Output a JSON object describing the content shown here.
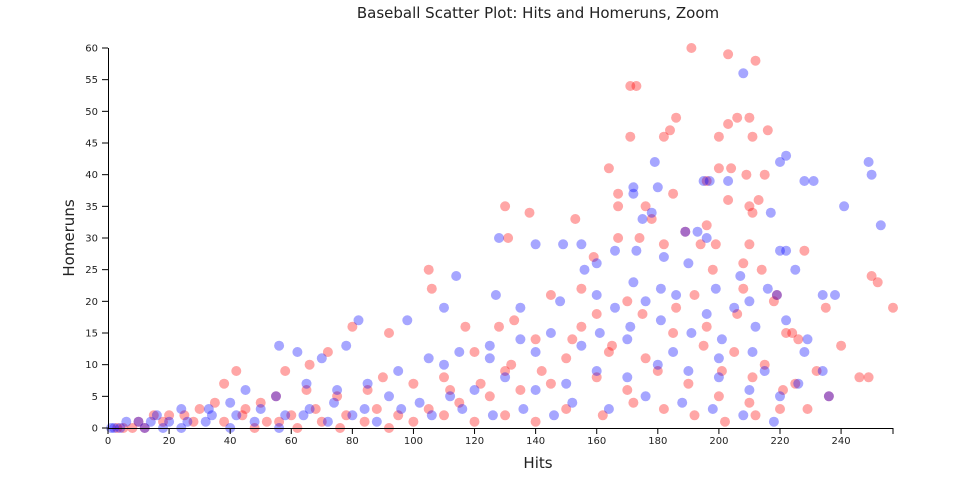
{
  "chart_data": {
    "type": "scatter",
    "title": "Baseball Scatter Plot: Hits and Homeruns, Zoom",
    "xlabel": "Hits",
    "ylabel": "Homeruns",
    "xlim": [
      0,
      257
    ],
    "ylim": [
      0,
      60
    ],
    "x_ticks": [
      0,
      20,
      40,
      60,
      80,
      100,
      120,
      140,
      160,
      180,
      200,
      220,
      240
    ],
    "y_ticks": [
      0,
      5,
      10,
      15,
      20,
      25,
      30,
      35,
      40,
      45,
      50,
      55,
      60
    ],
    "grid": false,
    "legend": "none",
    "series": [
      {
        "color": "#ff0000",
        "opacity": 0.35,
        "points": [
          [
            191,
            60
          ],
          [
            203,
            59
          ],
          [
            212,
            58
          ],
          [
            171,
            54
          ],
          [
            173,
            54
          ],
          [
            206,
            49
          ],
          [
            210,
            49
          ],
          [
            186,
            49
          ],
          [
            203,
            48
          ],
          [
            200,
            46
          ],
          [
            182,
            46
          ],
          [
            211,
            46
          ],
          [
            184,
            47
          ],
          [
            216,
            47
          ],
          [
            171,
            46
          ],
          [
            200,
            41
          ],
          [
            204,
            41
          ],
          [
            164,
            41
          ],
          [
            209,
            40
          ],
          [
            196,
            39
          ],
          [
            215,
            40
          ],
          [
            203,
            36
          ],
          [
            176,
            35
          ],
          [
            210,
            35
          ],
          [
            213,
            36
          ],
          [
            130,
            35
          ],
          [
            138,
            34
          ],
          [
            167,
            35
          ],
          [
            185,
            37
          ],
          [
            211,
            34
          ],
          [
            196,
            32
          ],
          [
            167,
            37
          ],
          [
            153,
            33
          ],
          [
            178,
            33
          ],
          [
            189,
            31
          ],
          [
            199,
            29
          ],
          [
            194,
            29
          ],
          [
            208,
            26
          ],
          [
            210,
            29
          ],
          [
            131,
            30
          ],
          [
            167,
            30
          ],
          [
            174,
            30
          ],
          [
            182,
            29
          ],
          [
            214,
            25
          ],
          [
            228,
            28
          ],
          [
            105,
            25
          ],
          [
            106,
            22
          ],
          [
            159,
            27
          ],
          [
            155,
            22
          ],
          [
            219,
            21
          ],
          [
            250,
            24
          ],
          [
            252,
            23
          ],
          [
            257,
            19
          ],
          [
            235,
            19
          ],
          [
            240,
            13
          ],
          [
            246,
            8
          ],
          [
            249,
            8
          ],
          [
            222,
            15
          ],
          [
            226,
            14
          ],
          [
            224,
            15
          ],
          [
            218,
            20
          ],
          [
            192,
            21
          ],
          [
            170,
            20
          ],
          [
            160,
            18
          ],
          [
            145,
            21
          ],
          [
            133,
            17
          ],
          [
            128,
            16
          ],
          [
            117,
            16
          ],
          [
            92,
            15
          ],
          [
            80,
            16
          ],
          [
            72,
            12
          ],
          [
            66,
            10
          ],
          [
            58,
            9
          ],
          [
            42,
            9
          ],
          [
            38,
            7
          ],
          [
            120,
            12
          ],
          [
            130,
            9
          ],
          [
            140,
            14
          ],
          [
            150,
            11
          ],
          [
            155,
            16
          ],
          [
            165,
            13
          ],
          [
            175,
            18
          ],
          [
            185,
            15
          ],
          [
            195,
            13
          ],
          [
            205,
            12
          ],
          [
            215,
            10
          ],
          [
            225,
            7
          ],
          [
            232,
            9
          ],
          [
            236,
            5
          ],
          [
            229,
            3
          ],
          [
            110,
            8
          ],
          [
            100,
            7
          ],
          [
            90,
            8
          ],
          [
            85,
            6
          ],
          [
            75,
            5
          ],
          [
            65,
            6
          ],
          [
            55,
            5
          ],
          [
            50,
            4
          ],
          [
            45,
            3
          ],
          [
            35,
            4
          ],
          [
            30,
            3
          ],
          [
            25,
            2
          ],
          [
            20,
            2
          ],
          [
            15,
            2
          ],
          [
            10,
            1
          ],
          [
            160,
            8
          ],
          [
            170,
            6
          ],
          [
            180,
            9
          ],
          [
            190,
            7
          ],
          [
            200,
            5
          ],
          [
            210,
            4
          ],
          [
            220,
            3
          ],
          [
            145,
            7
          ],
          [
            135,
            6
          ],
          [
            125,
            5
          ],
          [
            115,
            4
          ],
          [
            105,
            3
          ],
          [
            95,
            2
          ],
          [
            88,
            3
          ],
          [
            78,
            2
          ],
          [
            68,
            3
          ],
          [
            60,
            2
          ],
          [
            52,
            1
          ],
          [
            44,
            2
          ],
          [
            38,
            1
          ],
          [
            28,
            1
          ],
          [
            18,
            1
          ],
          [
            12,
            0
          ],
          [
            8,
            0
          ],
          [
            5,
            0
          ],
          [
            3,
            0
          ],
          [
            150,
            3
          ],
          [
            162,
            2
          ],
          [
            172,
            4
          ],
          [
            182,
            3
          ],
          [
            192,
            2
          ],
          [
            202,
            1
          ],
          [
            212,
            2
          ],
          [
            140,
            1
          ],
          [
            130,
            2
          ],
          [
            120,
            1
          ],
          [
            110,
            2
          ],
          [
            100,
            1
          ],
          [
            92,
            0
          ],
          [
            84,
            1
          ],
          [
            76,
            0
          ],
          [
            70,
            1
          ],
          [
            62,
            0
          ],
          [
            56,
            1
          ],
          [
            48,
            0
          ],
          [
            164,
            12
          ],
          [
            176,
            11
          ],
          [
            186,
            19
          ],
          [
            196,
            16
          ],
          [
            206,
            18
          ],
          [
            152,
            14
          ],
          [
            142,
            9
          ],
          [
            132,
            10
          ],
          [
            122,
            7
          ],
          [
            112,
            6
          ],
          [
            198,
            25
          ],
          [
            208,
            22
          ],
          [
            201,
            9
          ],
          [
            211,
            8
          ],
          [
            221,
            6
          ]
        ]
      },
      {
        "color": "#0000ff",
        "opacity": 0.35,
        "points": [
          [
            208,
            56
          ],
          [
            222,
            43
          ],
          [
            220,
            42
          ],
          [
            179,
            42
          ],
          [
            249,
            42
          ],
          [
            250,
            40
          ],
          [
            228,
            39
          ],
          [
            231,
            39
          ],
          [
            195,
            39
          ],
          [
            197,
            39
          ],
          [
            203,
            39
          ],
          [
            172,
            37
          ],
          [
            172,
            38
          ],
          [
            180,
            38
          ],
          [
            241,
            35
          ],
          [
            175,
            33
          ],
          [
            178,
            34
          ],
          [
            217,
            34
          ],
          [
            189,
            31
          ],
          [
            193,
            31
          ],
          [
            140,
            29
          ],
          [
            149,
            29
          ],
          [
            128,
            30
          ],
          [
            155,
            29
          ],
          [
            173,
            28
          ],
          [
            196,
            30
          ],
          [
            220,
            28
          ],
          [
            222,
            28
          ],
          [
            253,
            32
          ],
          [
            182,
            27
          ],
          [
            166,
            28
          ],
          [
            156,
            25
          ],
          [
            160,
            26
          ],
          [
            190,
            26
          ],
          [
            207,
            24
          ],
          [
            216,
            22
          ],
          [
            225,
            25
          ],
          [
            234,
            21
          ],
          [
            238,
            21
          ],
          [
            114,
            24
          ],
          [
            127,
            21
          ],
          [
            135,
            19
          ],
          [
            148,
            20
          ],
          [
            160,
            21
          ],
          [
            219,
            21
          ],
          [
            172,
            23
          ],
          [
            181,
            22
          ],
          [
            199,
            22
          ],
          [
            205,
            19
          ],
          [
            210,
            20
          ],
          [
            222,
            17
          ],
          [
            229,
            14
          ],
          [
            212,
            16
          ],
          [
            110,
            19
          ],
          [
            98,
            17
          ],
          [
            82,
            17
          ],
          [
            78,
            13
          ],
          [
            70,
            11
          ],
          [
            62,
            12
          ],
          [
            56,
            13
          ],
          [
            228,
            12
          ],
          [
            234,
            9
          ],
          [
            236,
            5
          ],
          [
            226,
            7
          ],
          [
            215,
            9
          ],
          [
            200,
            11
          ],
          [
            185,
            12
          ],
          [
            170,
            14
          ],
          [
            155,
            13
          ],
          [
            140,
            12
          ],
          [
            125,
            11
          ],
          [
            110,
            10
          ],
          [
            95,
            9
          ],
          [
            85,
            7
          ],
          [
            75,
            6
          ],
          [
            65,
            7
          ],
          [
            55,
            5
          ],
          [
            45,
            6
          ],
          [
            40,
            4
          ],
          [
            33,
            3
          ],
          [
            24,
            3
          ],
          [
            16,
            2
          ],
          [
            10,
            1
          ],
          [
            6,
            1
          ],
          [
            4,
            0
          ],
          [
            2,
            0
          ],
          [
            1,
            0
          ],
          [
            160,
            9
          ],
          [
            170,
            8
          ],
          [
            180,
            10
          ],
          [
            190,
            9
          ],
          [
            200,
            8
          ],
          [
            210,
            6
          ],
          [
            220,
            5
          ],
          [
            150,
            7
          ],
          [
            140,
            6
          ],
          [
            130,
            8
          ],
          [
            120,
            6
          ],
          [
            112,
            5
          ],
          [
            102,
            4
          ],
          [
            92,
            5
          ],
          [
            84,
            3
          ],
          [
            74,
            4
          ],
          [
            66,
            3
          ],
          [
            58,
            2
          ],
          [
            50,
            3
          ],
          [
            42,
            2
          ],
          [
            34,
            2
          ],
          [
            26,
            1
          ],
          [
            20,
            1
          ],
          [
            14,
            1
          ],
          [
            152,
            4
          ],
          [
            164,
            3
          ],
          [
            176,
            5
          ],
          [
            188,
            4
          ],
          [
            198,
            3
          ],
          [
            208,
            2
          ],
          [
            218,
            1
          ],
          [
            146,
            2
          ],
          [
            136,
            3
          ],
          [
            126,
            2
          ],
          [
            116,
            3
          ],
          [
            106,
            2
          ],
          [
            96,
            3
          ],
          [
            88,
            1
          ],
          [
            80,
            2
          ],
          [
            72,
            1
          ],
          [
            64,
            2
          ],
          [
            56,
            0
          ],
          [
            48,
            1
          ],
          [
            40,
            0
          ],
          [
            32,
            1
          ],
          [
            24,
            0
          ],
          [
            18,
            0
          ],
          [
            12,
            0
          ],
          [
            161,
            15
          ],
          [
            171,
            16
          ],
          [
            181,
            17
          ],
          [
            191,
            15
          ],
          [
            201,
            14
          ],
          [
            211,
            12
          ],
          [
            166,
            19
          ],
          [
            176,
            20
          ],
          [
            186,
            21
          ],
          [
            196,
            18
          ],
          [
            145,
            15
          ],
          [
            135,
            14
          ],
          [
            125,
            13
          ],
          [
            115,
            12
          ],
          [
            105,
            11
          ]
        ]
      }
    ]
  }
}
